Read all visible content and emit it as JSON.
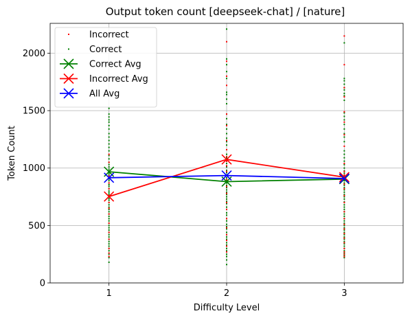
{
  "chart_data": {
    "type": "scatter",
    "title": "Output token count [deepseek-chat] / [nature]",
    "xlabel": "Difficulty Level",
    "ylabel": "Token Count",
    "x_categories": [
      "1",
      "2",
      "3"
    ],
    "x_values": [
      1,
      2,
      3
    ],
    "xlim": [
      0.5,
      3.5
    ],
    "ylim": [
      0,
      2260
    ],
    "yticks": [
      0,
      500,
      1000,
      1500,
      2000
    ],
    "grid": true,
    "legend_position": "top-left",
    "legend": [
      {
        "label": "Incorrect",
        "color": "#ff0000",
        "kind": "dot"
      },
      {
        "label": "Correct",
        "color": "#008000",
        "kind": "dot"
      },
      {
        "label": "Correct Avg",
        "color": "#008000",
        "kind": "line-x"
      },
      {
        "label": "Incorrect Avg",
        "color": "#ff0000",
        "kind": "line-x"
      },
      {
        "label": "All Avg",
        "color": "#0000ff",
        "kind": "line-x"
      }
    ],
    "scatter": {
      "correct": {
        "color": "#008000",
        "points": [
          [
            1,
            1520
          ],
          [
            1,
            1470
          ],
          [
            1,
            1445
          ],
          [
            1,
            1420
          ],
          [
            1,
            1400
          ],
          [
            1,
            1370
          ],
          [
            1,
            1340
          ],
          [
            1,
            1300
          ],
          [
            1,
            1270
          ],
          [
            1,
            1240
          ],
          [
            1,
            1210
          ],
          [
            1,
            1180
          ],
          [
            1,
            1150
          ],
          [
            1,
            1110
          ],
          [
            1,
            1080
          ],
          [
            1,
            1050
          ],
          [
            1,
            1030
          ],
          [
            1,
            1010
          ],
          [
            1,
            990
          ],
          [
            1,
            975
          ],
          [
            1,
            955
          ],
          [
            1,
            940
          ],
          [
            1,
            920
          ],
          [
            1,
            905
          ],
          [
            1,
            890
          ],
          [
            1,
            870
          ],
          [
            1,
            855
          ],
          [
            1,
            840
          ],
          [
            1,
            820
          ],
          [
            1,
            800
          ],
          [
            1,
            785
          ],
          [
            1,
            770
          ],
          [
            1,
            750
          ],
          [
            1,
            735
          ],
          [
            1,
            720
          ],
          [
            1,
            700
          ],
          [
            1,
            680
          ],
          [
            1,
            660
          ],
          [
            1,
            640
          ],
          [
            1,
            620
          ],
          [
            1,
            600
          ],
          [
            1,
            580
          ],
          [
            1,
            560
          ],
          [
            1,
            540
          ],
          [
            1,
            520
          ],
          [
            1,
            500
          ],
          [
            1,
            480
          ],
          [
            1,
            460
          ],
          [
            1,
            440
          ],
          [
            1,
            420
          ],
          [
            1,
            400
          ],
          [
            1,
            380
          ],
          [
            1,
            360
          ],
          [
            1,
            340
          ],
          [
            1,
            320
          ],
          [
            1,
            300
          ],
          [
            1,
            280
          ],
          [
            1,
            250
          ],
          [
            1,
            220
          ],
          [
            1,
            180
          ],
          [
            2,
            2210
          ],
          [
            2,
            1950
          ],
          [
            2,
            1900
          ],
          [
            2,
            1840
          ],
          [
            2,
            1780
          ],
          [
            2,
            1660
          ],
          [
            2,
            1640
          ],
          [
            2,
            1600
          ],
          [
            2,
            1560
          ],
          [
            2,
            1470
          ],
          [
            2,
            1430
          ],
          [
            2,
            1380
          ],
          [
            2,
            1340
          ],
          [
            2,
            1300
          ],
          [
            2,
            1260
          ],
          [
            2,
            1230
          ],
          [
            2,
            1200
          ],
          [
            2,
            1160
          ],
          [
            2,
            1120
          ],
          [
            2,
            1090
          ],
          [
            2,
            1060
          ],
          [
            2,
            1040
          ],
          [
            2,
            1010
          ],
          [
            2,
            980
          ],
          [
            2,
            960
          ],
          [
            2,
            940
          ],
          [
            2,
            915
          ],
          [
            2,
            895
          ],
          [
            2,
            870
          ],
          [
            2,
            850
          ],
          [
            2,
            830
          ],
          [
            2,
            810
          ],
          [
            2,
            790
          ],
          [
            2,
            770
          ],
          [
            2,
            750
          ],
          [
            2,
            730
          ],
          [
            2,
            710
          ],
          [
            2,
            690
          ],
          [
            2,
            660
          ],
          [
            2,
            640
          ],
          [
            2,
            610
          ],
          [
            2,
            590
          ],
          [
            2,
            560
          ],
          [
            2,
            540
          ],
          [
            2,
            510
          ],
          [
            2,
            490
          ],
          [
            2,
            470
          ],
          [
            2,
            440
          ],
          [
            2,
            420
          ],
          [
            2,
            400
          ],
          [
            2,
            380
          ],
          [
            2,
            350
          ],
          [
            2,
            330
          ],
          [
            2,
            300
          ],
          [
            2,
            280
          ],
          [
            2,
            250
          ],
          [
            2,
            230
          ],
          [
            2,
            200
          ],
          [
            2,
            160
          ],
          [
            3,
            2090
          ],
          [
            3,
            1780
          ],
          [
            3,
            1760
          ],
          [
            3,
            1730
          ],
          [
            3,
            1700
          ],
          [
            3,
            1680
          ],
          [
            3,
            1650
          ],
          [
            3,
            1630
          ],
          [
            3,
            1590
          ],
          [
            3,
            1480
          ],
          [
            3,
            1450
          ],
          [
            3,
            1420
          ],
          [
            3,
            1380
          ],
          [
            3,
            1340
          ],
          [
            3,
            1300
          ],
          [
            3,
            1270
          ],
          [
            3,
            1230
          ],
          [
            3,
            1150
          ],
          [
            3,
            1120
          ],
          [
            3,
            1090
          ],
          [
            3,
            1060
          ],
          [
            3,
            1030
          ],
          [
            3,
            1000
          ],
          [
            3,
            975
          ],
          [
            3,
            955
          ],
          [
            3,
            930
          ],
          [
            3,
            910
          ],
          [
            3,
            890
          ],
          [
            3,
            870
          ],
          [
            3,
            850
          ],
          [
            3,
            830
          ],
          [
            3,
            810
          ],
          [
            3,
            790
          ],
          [
            3,
            770
          ],
          [
            3,
            750
          ],
          [
            3,
            730
          ],
          [
            3,
            705
          ],
          [
            3,
            680
          ],
          [
            3,
            660
          ],
          [
            3,
            640
          ],
          [
            3,
            620
          ],
          [
            3,
            600
          ],
          [
            3,
            580
          ],
          [
            3,
            560
          ],
          [
            3,
            540
          ],
          [
            3,
            520
          ],
          [
            3,
            500
          ],
          [
            3,
            480
          ],
          [
            3,
            460
          ],
          [
            3,
            440
          ],
          [
            3,
            420
          ],
          [
            3,
            400
          ],
          [
            3,
            380
          ],
          [
            3,
            360
          ],
          [
            3,
            340
          ],
          [
            3,
            320
          ],
          [
            3,
            300
          ],
          [
            3,
            280
          ],
          [
            3,
            260
          ],
          [
            3,
            240
          ],
          [
            3,
            220
          ]
        ]
      },
      "incorrect": {
        "color": "#ff0000",
        "points": [
          [
            1,
            1120
          ],
          [
            1,
            1050
          ],
          [
            1,
            930
          ],
          [
            1,
            870
          ],
          [
            1,
            820
          ],
          [
            1,
            760
          ],
          [
            1,
            700
          ],
          [
            1,
            650
          ],
          [
            1,
            600
          ],
          [
            1,
            520
          ],
          [
            1,
            440
          ],
          [
            1,
            380
          ],
          [
            1,
            300
          ],
          [
            1,
            260
          ],
          [
            1,
            230
          ],
          [
            2,
            2100
          ],
          [
            2,
            1930
          ],
          [
            2,
            1800
          ],
          [
            2,
            1720
          ],
          [
            2,
            1470
          ],
          [
            2,
            1370
          ],
          [
            2,
            1240
          ],
          [
            2,
            1160
          ],
          [
            2,
            1100
          ],
          [
            2,
            1060
          ],
          [
            2,
            1020
          ],
          [
            2,
            970
          ],
          [
            2,
            900
          ],
          [
            2,
            840
          ],
          [
            2,
            780
          ],
          [
            2,
            700
          ],
          [
            2,
            640
          ],
          [
            2,
            560
          ],
          [
            2,
            480
          ],
          [
            2,
            420
          ],
          [
            2,
            370
          ],
          [
            2,
            320
          ],
          [
            2,
            270
          ],
          [
            3,
            2150
          ],
          [
            3,
            1900
          ],
          [
            3,
            1700
          ],
          [
            3,
            1620
          ],
          [
            3,
            1490
          ],
          [
            3,
            1400
          ],
          [
            3,
            1290
          ],
          [
            3,
            1190
          ],
          [
            3,
            1040
          ],
          [
            3,
            970
          ],
          [
            3,
            940
          ],
          [
            3,
            900
          ],
          [
            3,
            860
          ],
          [
            3,
            820
          ],
          [
            3,
            760
          ],
          [
            3,
            700
          ],
          [
            3,
            620
          ],
          [
            3,
            560
          ],
          [
            3,
            510
          ],
          [
            3,
            470
          ],
          [
            3,
            430
          ],
          [
            3,
            390
          ],
          [
            3,
            350
          ],
          [
            3,
            300
          ],
          [
            3,
            270
          ],
          [
            3,
            250
          ],
          [
            3,
            230
          ]
        ]
      }
    },
    "series": [
      {
        "name": "Correct Avg",
        "color": "#008000",
        "x": [
          1,
          2,
          3
        ],
        "y": [
          968,
          882,
          904
        ]
      },
      {
        "name": "Incorrect Avg",
        "color": "#ff0000",
        "x": [
          1,
          2,
          3
        ],
        "y": [
          752,
          1075,
          921
        ]
      },
      {
        "name": "All Avg",
        "color": "#0000ff",
        "x": [
          1,
          2,
          3
        ],
        "y": [
          916,
          935,
          909
        ]
      }
    ]
  }
}
